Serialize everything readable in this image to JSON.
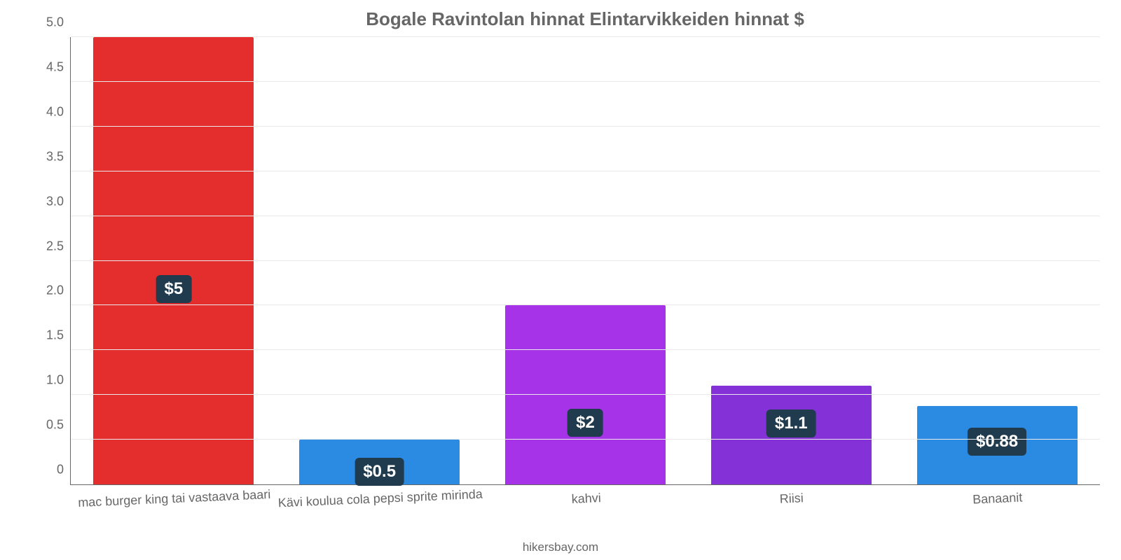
{
  "chart": {
    "type": "bar",
    "title": "Bogale Ravintolan hinnat Elintarvikkeiden hinnat $",
    "title_fontsize": 26,
    "title_color": "#666666",
    "background_color": "#ffffff",
    "grid_color": "#e9e9e9",
    "axis_color": "#666666",
    "axis_label_color": "#666666",
    "axis_fontsize": 18,
    "xaxis_fontsize": 18,
    "ylim_min": 0,
    "ylim_max": 5.0,
    "ytick_step": 0.5,
    "yticks": [
      "0",
      "0.5",
      "1.0",
      "1.5",
      "2.0",
      "2.5",
      "3.0",
      "3.5",
      "4.0",
      "4.5",
      "5.0"
    ],
    "bar_width_pct": 78,
    "value_badge_bg": "#203a4e",
    "value_badge_fontsize": 24,
    "categories": [
      {
        "label": "mac burger king tai vastaava baari",
        "value": 5.0,
        "display": "$5",
        "color": "#e42d2d"
      },
      {
        "label": "Kävi koulua cola pepsi sprite mirinda",
        "value": 0.5,
        "display": "$0.5",
        "color": "#2b8ae2"
      },
      {
        "label": "kahvi",
        "value": 2.0,
        "display": "$2",
        "color": "#a633e8"
      },
      {
        "label": "Riisi",
        "value": 1.1,
        "display": "$1.1",
        "color": "#8432d7"
      },
      {
        "label": "Banaanit",
        "value": 0.88,
        "display": "$0.88",
        "color": "#2b8ae2"
      }
    ],
    "credit": "hikersbay.com",
    "credit_fontsize": 17
  }
}
